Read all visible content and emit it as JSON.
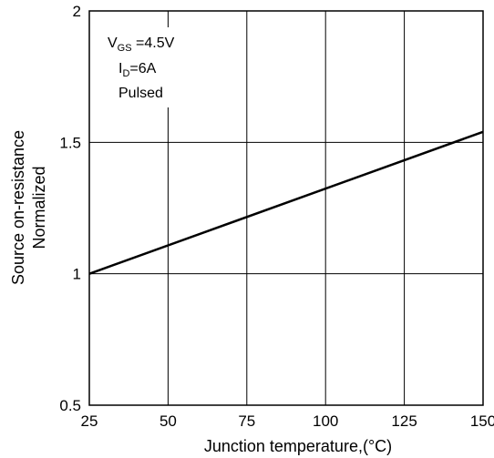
{
  "chart_data": {
    "type": "line",
    "title": "",
    "xlabel": "Junction temperature,(°C)",
    "ylabel": [
      "Source on-resistance",
      "Normalized"
    ],
    "xlim": [
      25,
      150
    ],
    "ylim": [
      0.5,
      2
    ],
    "x_ticks": [
      "25",
      "50",
      "75",
      "100",
      "125",
      "150"
    ],
    "y_ticks": [
      "0.5",
      "1",
      "1.5",
      "2"
    ],
    "grid": true,
    "legend": "none",
    "series": [
      {
        "x": [
          25,
          150
        ],
        "y": [
          1.0,
          1.54
        ]
      }
    ],
    "annotation": {
      "line1_main": "V",
      "line1_sub": "GS",
      "line1_rest": " =4.5V",
      "line2_main": "I",
      "line2_sub": "D",
      "line2_rest": "=6A",
      "line3": "Pulsed"
    }
  }
}
